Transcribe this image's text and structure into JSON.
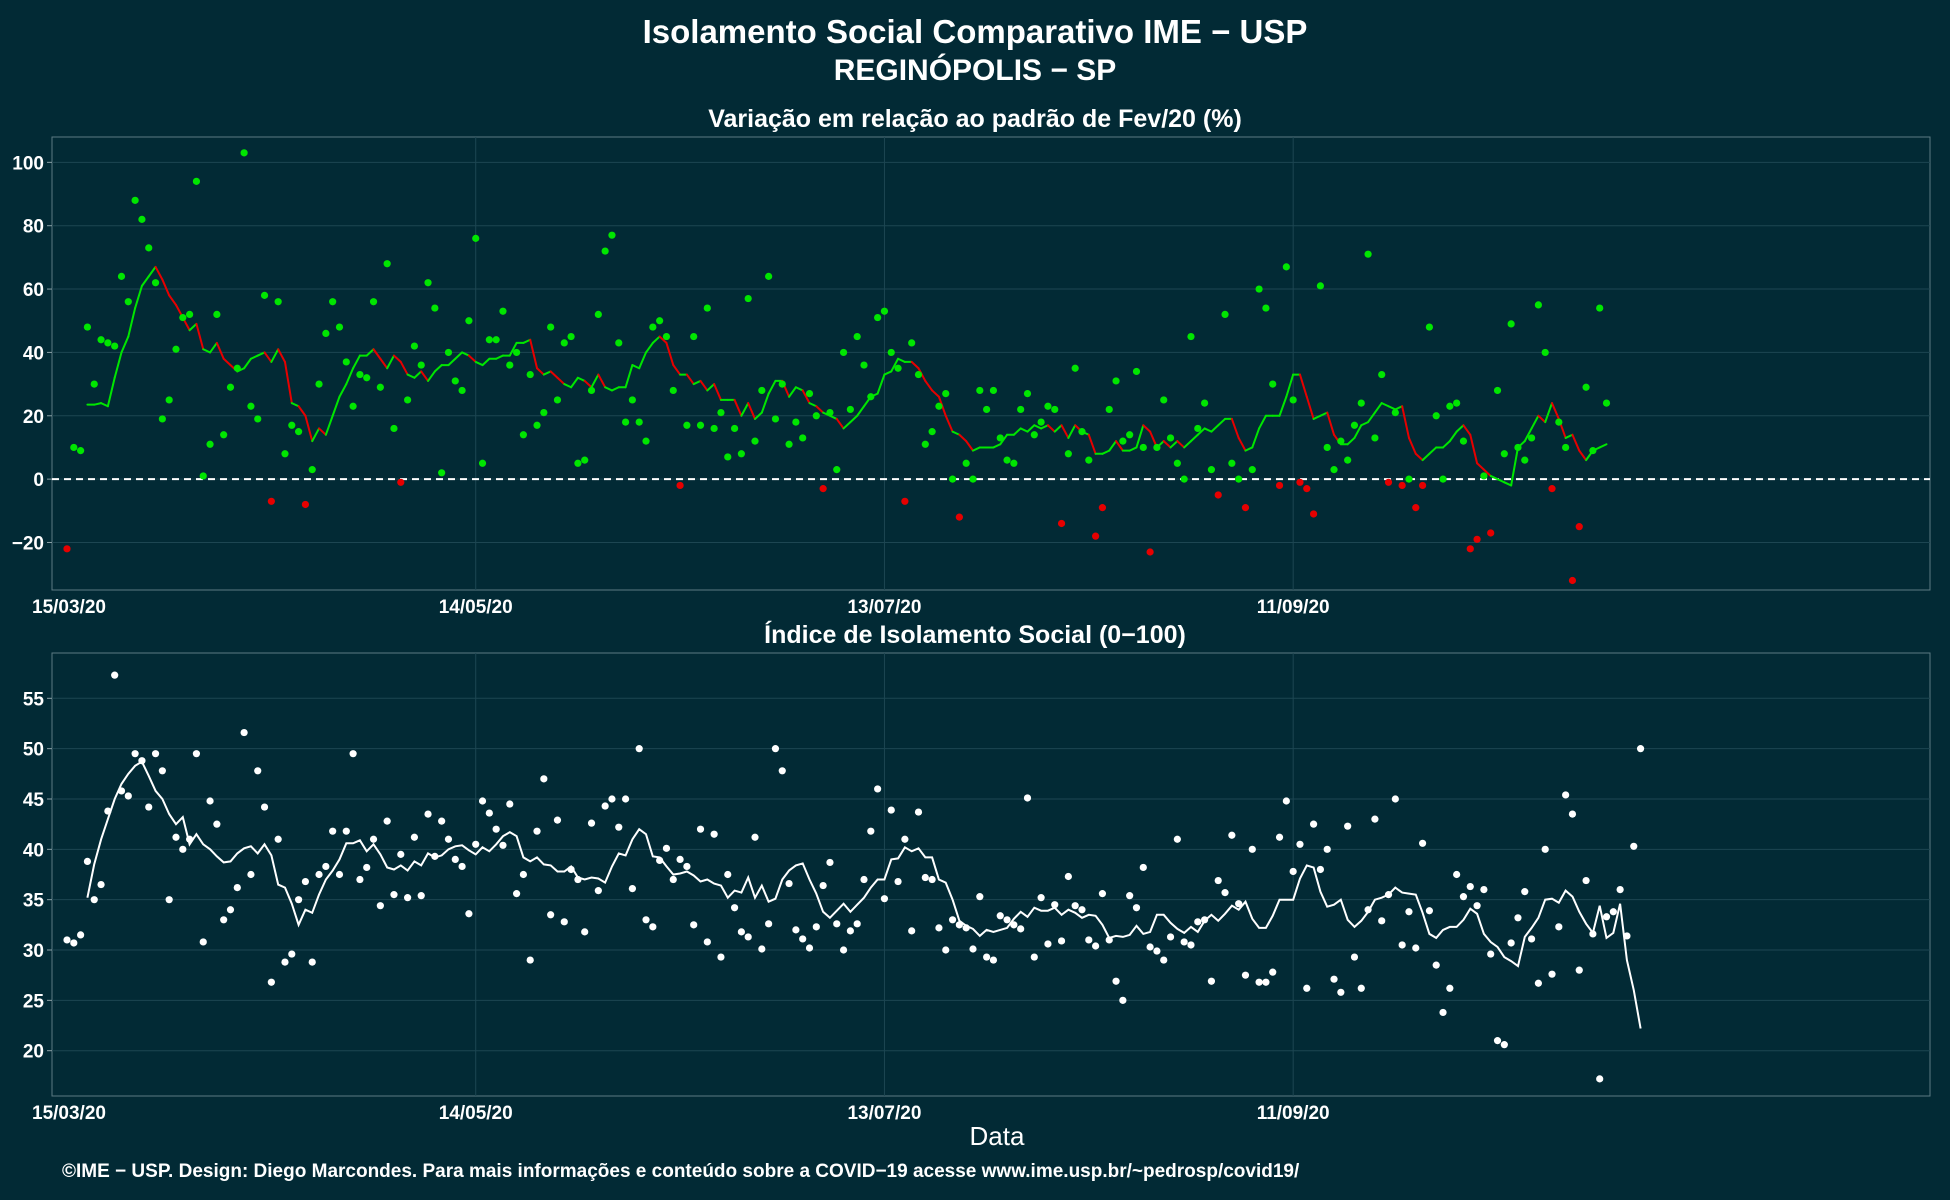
{
  "title_line1": "Isolamento Social Comparativo IME − USP",
  "title_line2": "REGINÓPOLIS − SP",
  "footer": "©IME − USP. Design: Diego Marcondes. Para mais informações e conteúdo sobre a COVID−19 acesse www.ime.usp.br/~pedrosp/covid19/",
  "colors": {
    "background": "#022a35",
    "positive": "#00e600",
    "negative": "#e60000",
    "index": "#ffffff"
  },
  "chart_data": [
    {
      "type": "scatter",
      "title": "Variação em relação ao padrão de Fev/20 (%)",
      "xlabel": "",
      "ylabel": "",
      "x_tick_labels": [
        "15/03/20",
        "14/05/20",
        "13/07/20",
        "11/09/20"
      ],
      "y_ticks": [
        -20,
        0,
        20,
        40,
        60,
        80,
        100
      ],
      "ylim": [
        -35,
        108
      ],
      "x_start": "15/03/20",
      "reference_line": 0,
      "grid": true,
      "series": [
        {
          "values": [
            -22,
            10,
            9,
            48,
            30,
            44,
            43,
            42,
            64,
            56,
            88,
            82,
            73,
            62,
            19,
            25,
            41,
            51,
            52,
            94,
            1,
            11,
            52,
            14,
            29,
            35,
            103,
            23,
            19,
            58,
            -7,
            56,
            8,
            17,
            15,
            -8,
            3,
            30,
            46,
            56,
            48,
            37,
            23,
            33,
            32,
            56,
            29,
            68,
            16,
            -1,
            25,
            42,
            36,
            62,
            54,
            2,
            40,
            31,
            28,
            50,
            76,
            5,
            44,
            44,
            53,
            36,
            40,
            14,
            33,
            17,
            21,
            48,
            25,
            43,
            45,
            5,
            6,
            28,
            52,
            72,
            77,
            43,
            18,
            25,
            18,
            12,
            48,
            50,
            45,
            28,
            -2,
            17,
            45,
            17,
            54,
            16,
            21,
            7,
            16,
            8,
            57,
            12,
            28,
            64,
            19,
            30,
            11,
            18,
            13,
            27,
            20,
            -3,
            21,
            3,
            40,
            22,
            45,
            36,
            26,
            51,
            53,
            40,
            35,
            -7,
            43,
            33,
            11,
            15,
            23,
            27,
            0,
            -12,
            5,
            0,
            28,
            22,
            28,
            13,
            6,
            5,
            22,
            27,
            14,
            18,
            23,
            22,
            -14,
            8,
            35,
            15,
            6,
            -18,
            -9,
            22,
            31,
            12,
            14,
            34,
            10,
            -23,
            10,
            25,
            13,
            5,
            0,
            45,
            16,
            24,
            3,
            -5,
            52,
            5,
            0,
            -9,
            3,
            60,
            54,
            30,
            -2,
            67,
            25,
            -1,
            -3,
            -11,
            61,
            10,
            3,
            12,
            6,
            17,
            24,
            71,
            13,
            33,
            -1,
            21,
            -2,
            0,
            -9,
            -2,
            48,
            20,
            0,
            23,
            24,
            12,
            -22,
            -19,
            1,
            -17,
            28,
            8,
            49,
            10,
            6,
            13,
            55,
            40,
            -3,
            18,
            10,
            -32,
            -15,
            29,
            9,
            54,
            24
          ]
        },
        {
          "values": [
            23.5,
            23.5,
            24,
            23,
            32,
            40,
            45,
            54,
            61,
            64,
            67,
            63,
            58,
            55,
            51,
            47,
            49,
            41,
            40,
            43,
            38,
            36,
            34,
            35,
            38,
            39,
            40,
            37,
            41,
            37,
            24,
            23,
            20,
            12,
            16,
            14,
            20,
            26,
            30,
            35,
            39,
            39,
            41,
            38,
            35,
            39,
            37,
            33,
            32,
            34,
            31,
            34,
            36,
            36,
            38,
            40,
            39,
            37,
            36,
            38,
            38,
            39,
            39,
            43,
            43,
            44,
            35,
            33,
            34,
            32,
            30,
            29,
            32,
            31,
            29,
            33,
            29,
            28,
            29,
            29,
            36,
            35,
            40,
            43,
            45,
            43,
            36,
            33,
            33,
            30,
            31,
            28,
            30,
            25,
            25,
            25,
            20,
            24,
            19,
            21,
            27,
            31,
            31,
            26,
            29,
            28,
            24,
            23,
            21,
            20,
            19,
            16,
            18,
            20,
            23,
            26,
            27,
            33,
            34,
            38,
            37,
            37,
            35,
            31,
            28,
            26,
            20,
            15,
            14,
            12,
            9,
            10,
            10,
            10,
            11,
            14,
            14,
            16,
            15,
            17,
            16,
            17,
            15,
            17,
            13,
            17,
            15,
            14,
            8,
            8,
            9,
            12,
            9,
            9,
            10,
            17,
            15,
            10,
            12,
            10,
            12,
            10,
            12,
            14,
            16,
            15,
            17,
            19,
            19,
            13,
            9,
            10,
            16,
            20,
            20,
            20,
            26,
            33,
            33,
            26,
            19,
            20,
            21,
            14,
            11,
            11,
            13,
            17,
            18,
            21,
            24,
            23,
            22,
            23,
            13,
            8,
            6,
            8,
            10,
            10,
            12,
            15,
            17,
            14,
            5,
            3,
            1,
            0,
            -1,
            -2,
            10,
            12,
            16,
            20,
            18,
            24,
            19,
            13,
            14,
            9,
            6,
            9,
            10,
            11
          ]
        }
      ]
    },
    {
      "type": "scatter",
      "title": "Índice de Isolamento Social (0−100)",
      "xlabel": "Data",
      "ylabel": "",
      "x_tick_labels": [
        "15/03/20",
        "14/05/20",
        "13/07/20",
        "11/09/20"
      ],
      "y_ticks": [
        20,
        25,
        30,
        35,
        40,
        45,
        50,
        55
      ],
      "ylim": [
        15.5,
        59.5
      ],
      "x_start": "15/03/20",
      "grid": true,
      "series": [
        {
          "values": [
            31,
            30.7,
            31.5,
            38.8,
            35,
            36.5,
            43.8,
            57.3,
            45.8,
            45.3,
            49.5,
            48.8,
            44.2,
            49.5,
            47.8,
            35,
            41.2,
            40,
            41,
            49.5,
            30.8,
            44.8,
            42.5,
            33,
            34,
            36.2,
            51.6,
            37.5,
            47.8,
            44.2,
            26.8,
            41,
            28.8,
            29.6,
            35,
            36.8,
            28.8,
            37.5,
            38.3,
            41.8,
            37.5,
            41.8,
            49.5,
            37,
            38.2,
            41,
            34.4,
            42.8,
            35.5,
            39.5,
            35.2,
            41.2,
            35.4,
            43.5,
            39.3,
            42.8,
            41,
            39,
            38.3,
            33.6,
            40.5,
            44.8,
            43.6,
            42,
            40.4,
            44.5,
            35.6,
            37.5,
            29,
            41.8,
            47,
            33.5,
            42.9,
            32.8,
            38,
            37,
            31.8,
            42.6,
            35.9,
            44.3,
            45,
            42.2,
            45,
            36.1,
            50,
            33,
            32.3,
            38.9,
            40.1,
            37,
            39,
            38.3,
            32.5,
            42,
            30.8,
            41.5,
            29.3,
            37.5,
            34.2,
            31.8,
            31.3,
            41.2,
            30.1,
            32.6,
            50,
            47.8,
            36.6,
            32,
            31.1,
            30.2,
            32.3,
            36.4,
            38.7,
            32.6,
            30,
            31.9,
            32.6,
            37,
            41.8,
            46,
            35.1,
            43.9,
            36.8,
            41,
            31.9,
            43.7,
            37.2,
            37,
            32.2,
            30,
            33,
            32.5,
            32.2,
            30.1,
            35.3,
            29.3,
            29,
            33.4,
            33,
            32.5,
            32.1,
            45.1,
            29.3,
            35.2,
            30.6,
            34.5,
            30.9,
            37.3,
            34.4,
            34,
            31,
            30.4,
            35.6,
            31,
            26.9,
            25,
            35.4,
            34.2,
            38.2,
            30.3,
            29.9,
            29,
            31.3,
            41,
            30.8,
            30.5,
            32.8,
            33,
            26.9,
            36.9,
            35.7,
            41.4,
            34.6,
            27.5,
            40,
            26.8,
            26.8,
            27.8,
            41.2,
            44.8,
            37.8,
            40.5,
            26.2,
            42.5,
            38,
            40,
            27.1,
            25.8,
            42.3,
            29.3,
            26.2,
            34,
            43,
            32.9,
            35.5,
            45,
            30.5,
            33.8,
            30.2,
            40.6,
            33.9,
            28.5,
            23.8,
            26.2,
            37.5,
            35.3,
            36.3,
            34.4,
            36,
            29.6,
            21,
            20.6,
            30.7,
            33.2,
            35.8,
            31.1,
            26.7,
            40,
            27.6,
            32.3,
            45.4,
            43.5,
            28,
            36.9,
            31.6,
            17.2,
            33.3,
            33.8,
            36,
            31.4,
            40.3,
            50
          ]
        },
        {
          "values": [
            35.2,
            38.5,
            41,
            43,
            45,
            46.5,
            47.5,
            48.3,
            48.7,
            47.3,
            45.8,
            45,
            43.5,
            42.5,
            43.2,
            40.5,
            41.5,
            40.5,
            40,
            39.3,
            38.7,
            38.8,
            39.6,
            40.1,
            40.3,
            39.6,
            40.5,
            39.4,
            36.5,
            36.2,
            34.6,
            32.5,
            34,
            33.7,
            35.5,
            37,
            37.9,
            39,
            40.6,
            40.6,
            40.9,
            39.8,
            40.5,
            39.5,
            38.2,
            38,
            38.4,
            37.9,
            38.8,
            38.4,
            39.6,
            39.2,
            39.4,
            40,
            40.3,
            40.4,
            39.9,
            39.5,
            40.2,
            39.8,
            40.5,
            41.3,
            41.7,
            41.3,
            39.2,
            38.8,
            39.2,
            38.5,
            38.4,
            37.8,
            37.8,
            38.3,
            37.2,
            37,
            37.2,
            37.1,
            36.7,
            38.3,
            39.6,
            39.4,
            41,
            42,
            41.5,
            39.3,
            39.2,
            38.3,
            37.5,
            37.6,
            37.8,
            37.4,
            36.8,
            37,
            36.6,
            36.4,
            35.2,
            35.9,
            35.7,
            37.2,
            35.2,
            36.4,
            34.8,
            35.1,
            37,
            37.9,
            38.4,
            38.6,
            37,
            35.6,
            33.8,
            33.2,
            33.9,
            34.6,
            33.8,
            34.5,
            35.2,
            36.2,
            37,
            37,
            39,
            39.1,
            40.2,
            39.8,
            40.1,
            39.2,
            39.2,
            37,
            36.7,
            35,
            32.9,
            32.4,
            32.1,
            31.4,
            32,
            31.8,
            32,
            32.2,
            33.1,
            33.8,
            33.3,
            34.2,
            33.9,
            33.9,
            34.2,
            33.5,
            34,
            33.7,
            33.2,
            33.5,
            33.4,
            32.5,
            31.2,
            31.4,
            31.3,
            31.5,
            32.4,
            31.6,
            31.8,
            33.5,
            33.5,
            32.7,
            32.1,
            31.7,
            32.3,
            31.8,
            32.9,
            33.5,
            32.9,
            33.6,
            34.4,
            34,
            34.8,
            33.1,
            32.2,
            32.2,
            33.4,
            35,
            35,
            35,
            37.1,
            38.4,
            38.2,
            35.8,
            34.3,
            34.5,
            35,
            33,
            32.3,
            32.9,
            33.8,
            35,
            35.2,
            35.5,
            36.2,
            35.7,
            35.6,
            35.5,
            33.7,
            31.6,
            31.2,
            32,
            32.3,
            32.3,
            33,
            34.1,
            33.6,
            31.6,
            30.8,
            30.3,
            29.3,
            28.9,
            28.4,
            31.3,
            32.2,
            33.2,
            35,
            35.1,
            34.7,
            35.9,
            35.3,
            33.8,
            32.6,
            31.7,
            34.4,
            31.2,
            31.7,
            34.6,
            29,
            26,
            22.2
          ]
        }
      ]
    }
  ]
}
